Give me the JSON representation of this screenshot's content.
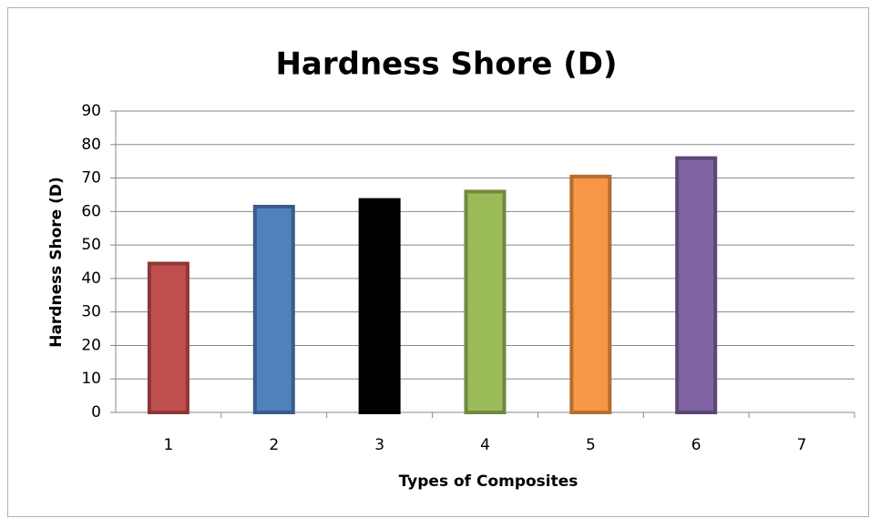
{
  "chart_data": {
    "type": "bar",
    "title": "Hardness Shore (D)",
    "x_label": "Types of Composites",
    "y_label": "Hardness Shore (D)",
    "categories": [
      "1",
      "2",
      "3",
      "4",
      "5",
      "6",
      "7"
    ],
    "values": [
      45,
      62,
      64,
      66.5,
      71,
      76.5,
      null
    ],
    "colors": [
      "#c0504d",
      "#4f81bd",
      "#000000",
      "#9bbb59",
      "#f79646",
      "#8064a2",
      null
    ],
    "edge_colors": [
      "#8c3836",
      "#385d8a",
      "#000000",
      "#71893f",
      "#b66d31",
      "#5c4776",
      null
    ],
    "ylim": [
      0,
      90
    ],
    "yticks": [
      0,
      10,
      20,
      30,
      40,
      50,
      60,
      70,
      80,
      90
    ],
    "grid": true
  }
}
